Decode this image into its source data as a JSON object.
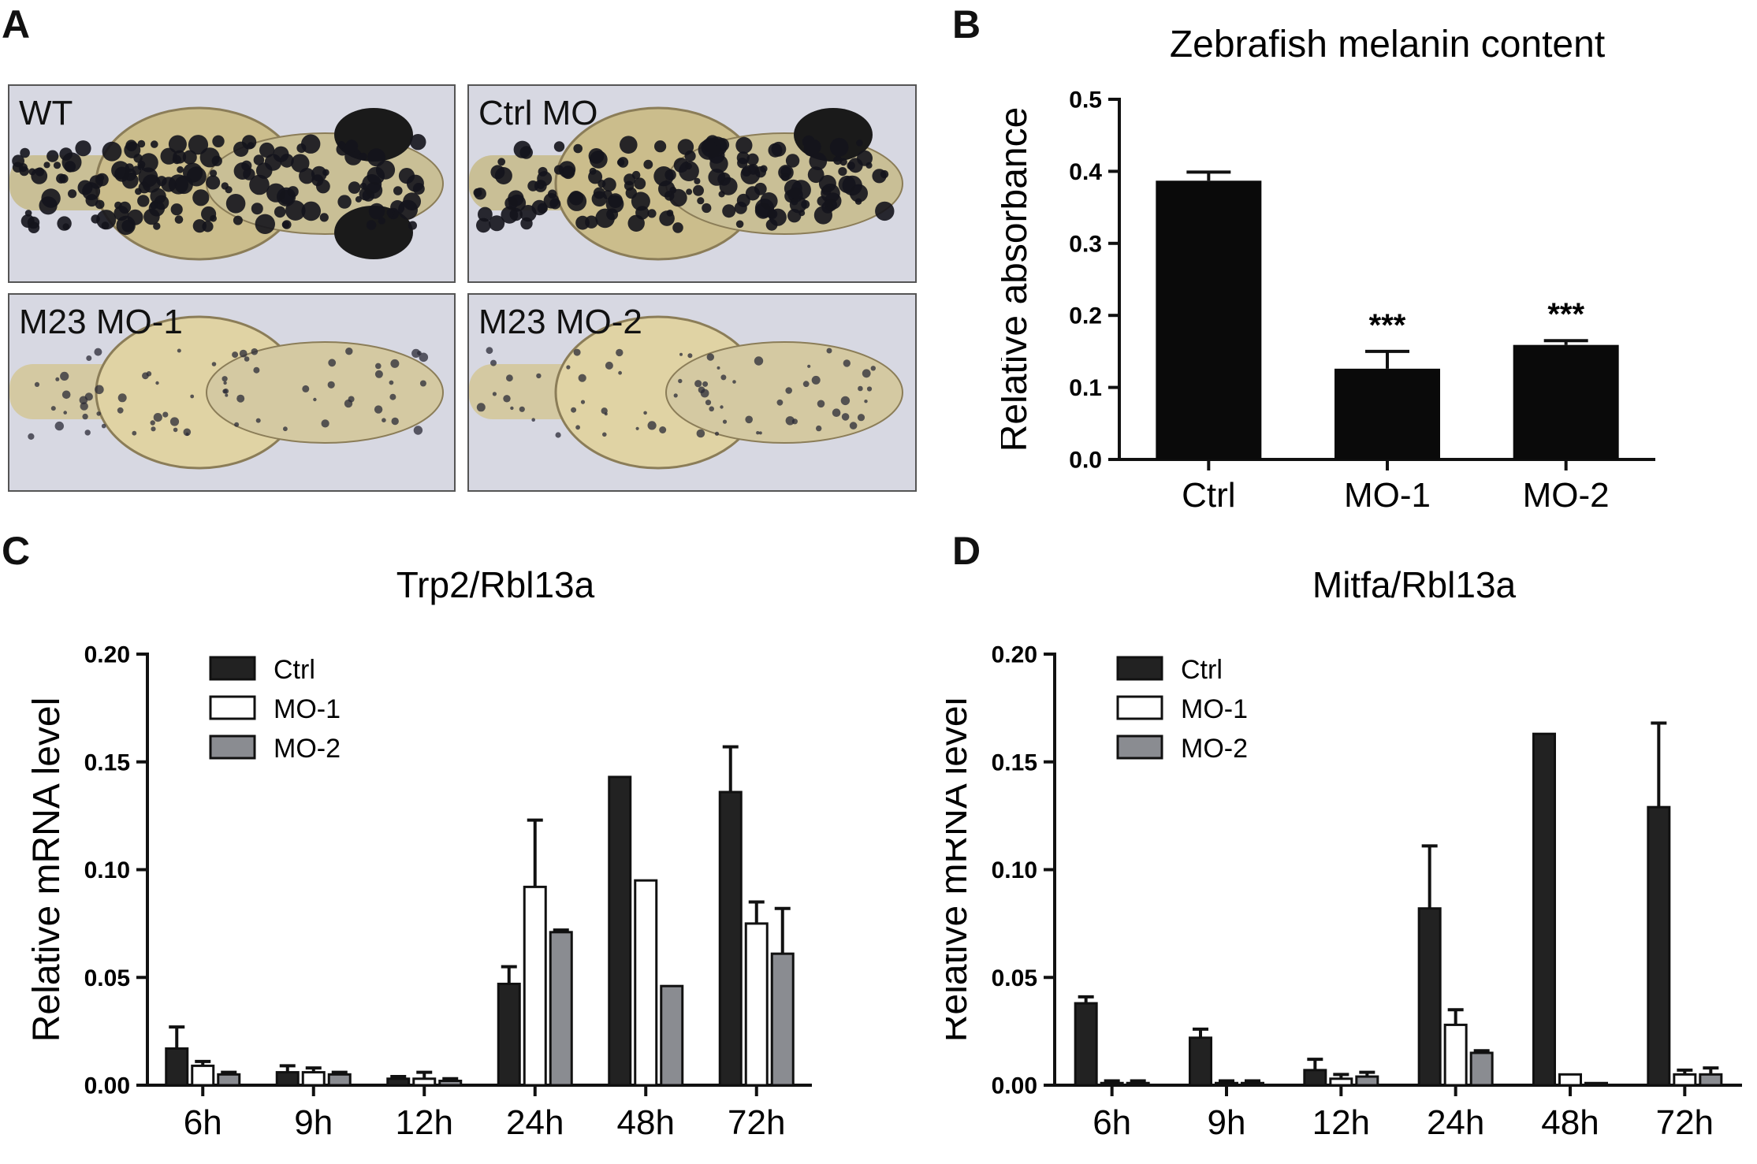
{
  "panels": {
    "a": "A",
    "b": "B",
    "c": "C",
    "d": "D"
  },
  "photos": [
    {
      "label": "WT",
      "pigment": "heavy"
    },
    {
      "label": "Ctrl MO",
      "pigment": "heavy"
    },
    {
      "label": "M23 MO-1",
      "pigment": "light"
    },
    {
      "label": "M23 MO-2",
      "pigment": "light"
    }
  ],
  "colors": {
    "ctrl": "#222222",
    "mo1": "#ffffff",
    "mo2": "#8a8c91",
    "axis": "#111111",
    "bar_b": "#0a0a0a"
  },
  "chart_data": [
    {
      "type": "bar",
      "title": "Zebrafish melanin content",
      "xlabel": "",
      "ylabel": "Relative absorbance",
      "ylim": [
        0,
        0.5
      ],
      "yticks": [
        "0.0",
        "0.1",
        "0.2",
        "0.3",
        "0.4",
        "0.5"
      ],
      "categories": [
        "Ctrl",
        "MO-1",
        "MO-2"
      ],
      "values": [
        0.387,
        0.126,
        0.159
      ],
      "errors": [
        0.012,
        0.024,
        0.006
      ],
      "annotations": [
        "",
        "***",
        "***"
      ]
    },
    {
      "type": "bar",
      "title": "Trp2/Rbl13a",
      "xlabel": "",
      "ylabel": "Relative mRNA level",
      "ylim": [
        0,
        0.2
      ],
      "yticks": [
        "0.00",
        "0.05",
        "0.10",
        "0.15",
        "0.20"
      ],
      "categories": [
        "6h",
        "9h",
        "12h",
        "24h",
        "48h",
        "72h"
      ],
      "legend_position": "top-left",
      "series": [
        {
          "name": "Ctrl",
          "values": [
            0.017,
            0.006,
            0.003,
            0.047,
            0.143,
            0.136
          ],
          "errors": [
            0.01,
            0.003,
            0.001,
            0.008,
            0,
            0.021
          ]
        },
        {
          "name": "MO-1",
          "values": [
            0.009,
            0.006,
            0.003,
            0.092,
            0.095,
            0.075
          ],
          "errors": [
            0.002,
            0.002,
            0.003,
            0.031,
            0,
            0.01
          ]
        },
        {
          "name": "MO-2",
          "values": [
            0.005,
            0.005,
            0.002,
            0.071,
            0.046,
            0.061
          ],
          "errors": [
            0.001,
            0.001,
            0.001,
            0.001,
            0,
            0.021
          ]
        }
      ]
    },
    {
      "type": "bar",
      "title": "Mitfa/Rbl13a",
      "xlabel": "",
      "ylabel": "Relative mRNA level",
      "ylim": [
        0,
        0.2
      ],
      "yticks": [
        "0.00",
        "0.05",
        "0.10",
        "0.15",
        "0.20"
      ],
      "categories": [
        "6h",
        "9h",
        "12h",
        "24h",
        "48h",
        "72h"
      ],
      "legend_position": "top-left",
      "series": [
        {
          "name": "Ctrl",
          "values": [
            0.038,
            0.022,
            0.007,
            0.082,
            0.163,
            0.129
          ],
          "errors": [
            0.003,
            0.004,
            0.005,
            0.029,
            0,
            0.039
          ]
        },
        {
          "name": "MO-1",
          "values": [
            0.001,
            0.001,
            0.003,
            0.028,
            0.005,
            0.005
          ],
          "errors": [
            0.001,
            0.001,
            0.002,
            0.007,
            0,
            0.002
          ]
        },
        {
          "name": "MO-2",
          "values": [
            0.001,
            0.001,
            0.004,
            0.015,
            0.001,
            0.005
          ],
          "errors": [
            0.001,
            0.001,
            0.002,
            0.001,
            0,
            0.003
          ]
        }
      ]
    }
  ]
}
